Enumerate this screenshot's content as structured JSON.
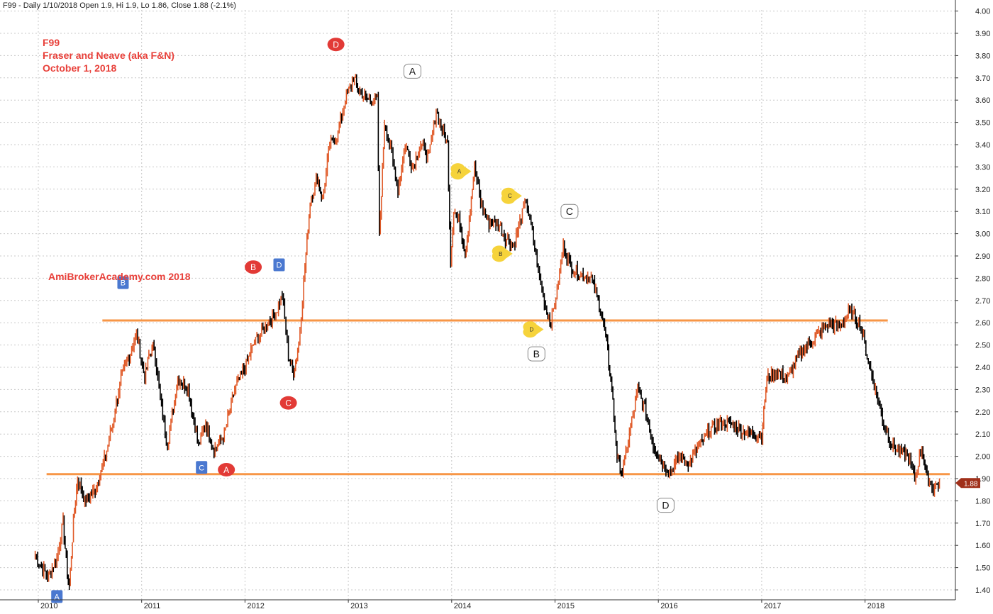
{
  "header": {
    "text": "F99 - Daily 1/10/2018 Open 1.9, Hi 1.9, Lo 1.86, Close 1.88 (-2.1%)"
  },
  "annotation": {
    "line1": "F99",
    "line2": "Fraser and Neave (aka F&N)",
    "line3": "October 1, 2018",
    "watermark": "AmiBrokerAcademy.com  2018"
  },
  "colors": {
    "annotation_text": "#e8403a",
    "support_line": "#f79646",
    "candle_black": "#000000",
    "candle_orange": "#e05a28",
    "price_tag": "#a0301a",
    "marker_red": "#e23a36",
    "marker_blue": "#4a78d0",
    "marker_yellow": "#f6d33b",
    "grid": "#c8c8c8"
  },
  "chart_data": {
    "type": "line",
    "title": "F99 - Daily 1/10/2018 Open 1.9, Hi 1.9, Lo 1.86, Close 1.88 (-2.1%)",
    "ylim": [
      1.35,
      4.05
    ],
    "y_ticks": [
      "4.00",
      "3.90",
      "3.80",
      "3.70",
      "3.60",
      "3.50",
      "3.40",
      "3.30",
      "3.20",
      "3.10",
      "3.00",
      "2.90",
      "2.80",
      "2.70",
      "2.60",
      "2.50",
      "2.40",
      "2.30",
      "2.20",
      "2.10",
      "2.00",
      "1.90",
      "1.80",
      "1.70",
      "1.60",
      "1.50",
      "1.40"
    ],
    "x_ticks": [
      "2010",
      "2011",
      "2012",
      "2013",
      "2014",
      "2015",
      "2016",
      "2017",
      "2018"
    ],
    "x_range": [
      2009.95,
      2018.85
    ],
    "last_close": "1.88",
    "grid": true,
    "series": [
      {
        "points": [
          [
            2009.97,
            1.56
          ],
          [
            2010.03,
            1.5
          ],
          [
            2010.1,
            1.46
          ],
          [
            2010.18,
            1.55
          ],
          [
            2010.24,
            1.7
          ],
          [
            2010.28,
            1.48
          ],
          [
            2010.3,
            1.42
          ],
          [
            2010.34,
            1.7
          ],
          [
            2010.38,
            1.9
          ],
          [
            2010.45,
            1.8
          ],
          [
            2010.55,
            1.85
          ],
          [
            2010.65,
            2.0
          ],
          [
            2010.72,
            2.15
          ],
          [
            2010.8,
            2.35
          ],
          [
            2010.88,
            2.45
          ],
          [
            2010.95,
            2.55
          ],
          [
            2011.03,
            2.35
          ],
          [
            2011.07,
            2.45
          ],
          [
            2011.12,
            2.5
          ],
          [
            2011.18,
            2.25
          ],
          [
            2011.25,
            2.05
          ],
          [
            2011.35,
            2.35
          ],
          [
            2011.45,
            2.3
          ],
          [
            2011.55,
            2.05
          ],
          [
            2011.62,
            2.15
          ],
          [
            2011.7,
            2.03
          ],
          [
            2011.8,
            2.1
          ],
          [
            2011.9,
            2.3
          ],
          [
            2012.0,
            2.4
          ],
          [
            2012.08,
            2.5
          ],
          [
            2012.15,
            2.55
          ],
          [
            2012.22,
            2.6
          ],
          [
            2012.3,
            2.65
          ],
          [
            2012.36,
            2.72
          ],
          [
            2012.42,
            2.45
          ],
          [
            2012.47,
            2.38
          ],
          [
            2012.52,
            2.5
          ],
          [
            2012.58,
            2.85
          ],
          [
            2012.63,
            3.15
          ],
          [
            2012.7,
            3.25
          ],
          [
            2012.75,
            3.15
          ],
          [
            2012.82,
            3.4
          ],
          [
            2012.9,
            3.45
          ],
          [
            2012.97,
            3.6
          ],
          [
            2013.05,
            3.7
          ],
          [
            2013.1,
            3.65
          ],
          [
            2013.18,
            3.6
          ],
          [
            2013.28,
            3.6
          ],
          [
            2013.3,
            2.98
          ],
          [
            2013.35,
            3.5
          ],
          [
            2013.42,
            3.35
          ],
          [
            2013.48,
            3.2
          ],
          [
            2013.55,
            3.4
          ],
          [
            2013.62,
            3.3
          ],
          [
            2013.7,
            3.4
          ],
          [
            2013.78,
            3.35
          ],
          [
            2013.85,
            3.55
          ],
          [
            2013.92,
            3.45
          ],
          [
            2013.96,
            3.4
          ],
          [
            2013.99,
            2.88
          ],
          [
            2014.02,
            3.1
          ],
          [
            2014.08,
            3.05
          ],
          [
            2014.13,
            2.92
          ],
          [
            2014.18,
            3.1
          ],
          [
            2014.22,
            3.3
          ],
          [
            2014.28,
            3.15
          ],
          [
            2014.35,
            3.05
          ],
          [
            2014.45,
            3.05
          ],
          [
            2014.52,
            2.98
          ],
          [
            2014.6,
            2.95
          ],
          [
            2014.66,
            3.05
          ],
          [
            2014.72,
            3.15
          ],
          [
            2014.78,
            3.0
          ],
          [
            2014.85,
            2.8
          ],
          [
            2014.92,
            2.65
          ],
          [
            2014.96,
            2.6
          ],
          [
            2015.02,
            2.75
          ],
          [
            2015.08,
            2.95
          ],
          [
            2015.15,
            2.85
          ],
          [
            2015.25,
            2.82
          ],
          [
            2015.35,
            2.8
          ],
          [
            2015.45,
            2.65
          ],
          [
            2015.5,
            2.5
          ],
          [
            2015.55,
            2.3
          ],
          [
            2015.6,
            2.0
          ],
          [
            2015.65,
            1.92
          ],
          [
            2015.72,
            2.1
          ],
          [
            2015.8,
            2.3
          ],
          [
            2015.88,
            2.2
          ],
          [
            2015.95,
            2.05
          ],
          [
            2016.05,
            1.96
          ],
          [
            2016.12,
            1.93
          ],
          [
            2016.2,
            2.0
          ],
          [
            2016.3,
            1.97
          ],
          [
            2016.4,
            2.05
          ],
          [
            2016.5,
            2.12
          ],
          [
            2016.6,
            2.15
          ],
          [
            2016.7,
            2.15
          ],
          [
            2016.8,
            2.12
          ],
          [
            2016.9,
            2.1
          ],
          [
            2017.0,
            2.1
          ],
          [
            2017.05,
            2.35
          ],
          [
            2017.15,
            2.38
          ],
          [
            2017.25,
            2.35
          ],
          [
            2017.35,
            2.45
          ],
          [
            2017.45,
            2.5
          ],
          [
            2017.55,
            2.55
          ],
          [
            2017.65,
            2.6
          ],
          [
            2017.75,
            2.58
          ],
          [
            2017.85,
            2.65
          ],
          [
            2017.95,
            2.6
          ],
          [
            2018.02,
            2.45
          ],
          [
            2018.1,
            2.3
          ],
          [
            2018.18,
            2.15
          ],
          [
            2018.26,
            2.05
          ],
          [
            2018.34,
            2.02
          ],
          [
            2018.42,
            2.0
          ],
          [
            2018.48,
            1.9
          ],
          [
            2018.55,
            2.05
          ],
          [
            2018.6,
            1.9
          ],
          [
            2018.66,
            1.86
          ],
          [
            2018.72,
            1.88
          ]
        ]
      }
    ],
    "support_lines": [
      {
        "value": 2.61,
        "from": 2010.62,
        "to": 2018.22
      },
      {
        "value": 1.92,
        "from": 2010.08,
        "to": 2018.82
      }
    ],
    "markers": [
      {
        "label": "A",
        "style": "blue-square",
        "x": 2010.18,
        "y": 1.37
      },
      {
        "label": "B",
        "style": "blue-square",
        "x": 2010.82,
        "y": 2.78
      },
      {
        "label": "C",
        "style": "blue-square",
        "x": 2011.58,
        "y": 1.95
      },
      {
        "label": "D",
        "style": "blue-square",
        "x": 2012.33,
        "y": 2.86
      },
      {
        "label": "A",
        "style": "red-oval",
        "x": 2011.82,
        "y": 1.94
      },
      {
        "label": "B",
        "style": "red-oval",
        "x": 2012.08,
        "y": 2.85
      },
      {
        "label": "C",
        "style": "red-oval",
        "x": 2012.42,
        "y": 2.24
      },
      {
        "label": "D",
        "style": "red-oval",
        "x": 2012.88,
        "y": 3.85
      },
      {
        "label": "A",
        "style": "white-box",
        "x": 2013.62,
        "y": 3.73
      },
      {
        "label": "B",
        "style": "white-box",
        "x": 2014.82,
        "y": 2.46
      },
      {
        "label": "C",
        "style": "white-box",
        "x": 2015.14,
        "y": 3.1
      },
      {
        "label": "D",
        "style": "white-box",
        "x": 2016.07,
        "y": 1.78
      },
      {
        "label": "A",
        "style": "yellow-tag",
        "x": 2014.08,
        "y": 3.28
      },
      {
        "label": "B",
        "style": "yellow-tag",
        "x": 2014.48,
        "y": 2.91
      },
      {
        "label": "C",
        "style": "yellow-tag",
        "x": 2014.57,
        "y": 3.17
      },
      {
        "label": "D",
        "style": "yellow-tag",
        "x": 2014.78,
        "y": 2.57
      }
    ]
  }
}
